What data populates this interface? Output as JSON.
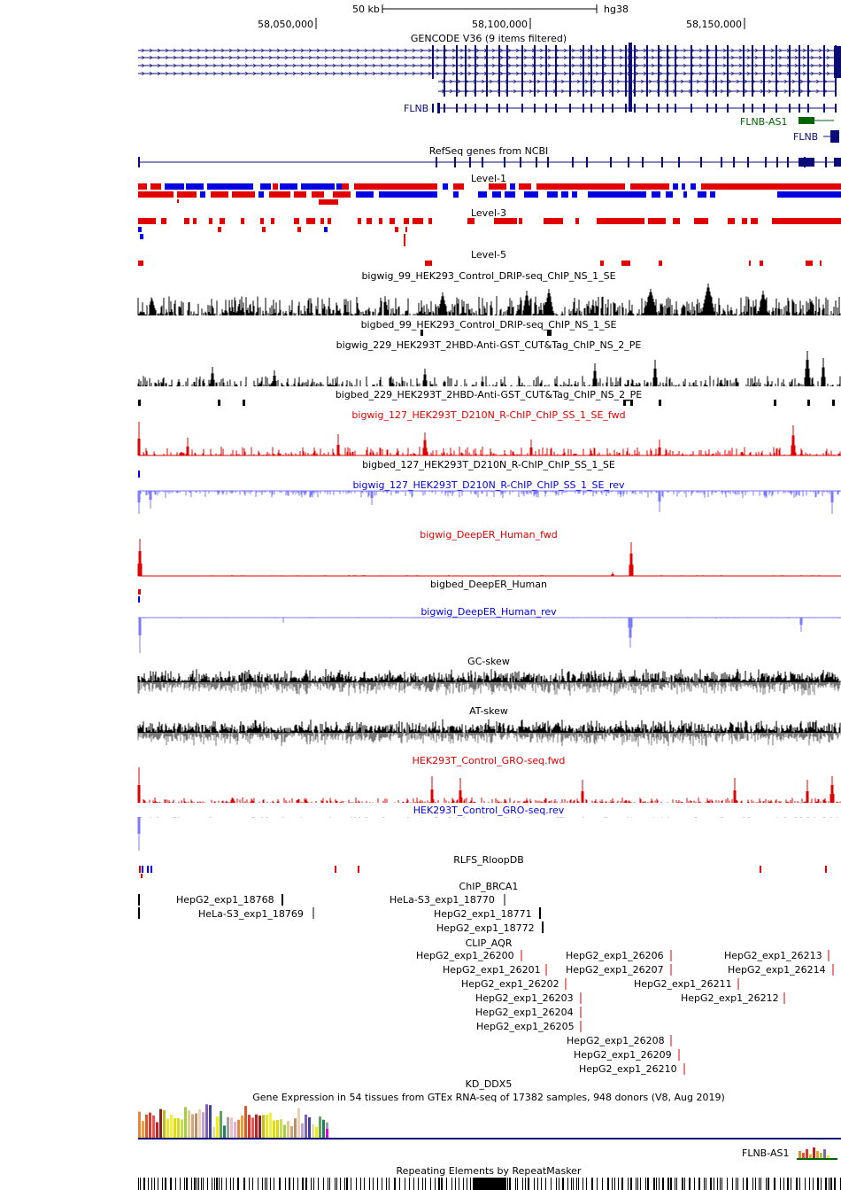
{
  "ruler": {
    "scale_label": "50 kb",
    "assembly": "hg38",
    "ticks": [
      "58,050,000",
      "58,100,000",
      "58,150,000"
    ]
  },
  "colors": {
    "navy": "#0c0c78",
    "green": "#006400",
    "red": "#e00000",
    "blue": "#0000e0",
    "light_blue": "#7a7aff",
    "black": "#000000",
    "gray": "#777777",
    "magenta": "#e000e0"
  },
  "tracks": {
    "gencode": {
      "title": "GENCODE V36 (9 items filtered)",
      "gene_flnb": "FLNB",
      "gene_flnb_as1": "FLNB-AS1",
      "gene_flnb_2": "FLNB"
    },
    "refseq": {
      "title": "RefSeq genes from NCBI"
    },
    "level1": {
      "title": "Level-1"
    },
    "level3": {
      "title": "Level-3"
    },
    "level5": {
      "title": "Level-5"
    },
    "bw99": {
      "title": "bigwig_99_HEK293_Control_DRIP-seq_ChIP_NS_1_SE"
    },
    "bb99": {
      "title": "bigbed_99_HEK293_Control_DRIP-seq_ChIP_NS_1_SE"
    },
    "bw229": {
      "title": "bigwig_229_HEK293T_2HBD-Anti-GST_CUT&Tag_ChIP_NS_2_PE"
    },
    "bb229": {
      "title": "bigbed_229_HEK293T_2HBD-Anti-GST_CUT&Tag_ChIP_NS_2_PE"
    },
    "bw127f": {
      "title": "bigwig_127_HEK293T_D210N_R-ChIP_ChIP_SS_1_SE_fwd"
    },
    "bb127": {
      "title": "bigbed_127_HEK293T_D210N_R-ChIP_ChIP_SS_1_SE"
    },
    "bw127r": {
      "title": "bigwig_127_HEK293T_D210N_R-ChIP_ChIP_SS_1_SE_rev"
    },
    "deeper_f": {
      "title": "bigwig_DeepER_Human_fwd"
    },
    "deeper_bb": {
      "title": "bigbed_DeepER_Human"
    },
    "deeper_r": {
      "title": "bigwig_DeepER_Human_rev"
    },
    "gcskew": {
      "title": "GC-skew"
    },
    "atskew": {
      "title": "AT-skew"
    },
    "gro_f": {
      "title": "HEK293T_Control_GRO-seq.fwd"
    },
    "gro_r": {
      "title": "HEK293T_Control_GRO-seq.rev"
    },
    "rlfs": {
      "title": "RLFS_RloopDB"
    },
    "brca1": {
      "title": "ChIP_BRCA1",
      "items": [
        "HepG2_exp1_18768",
        "HeLa-S3_exp1_18769",
        "HeLa-S3_exp1_18770",
        "HepG2_exp1_18771",
        "HepG2_exp1_18772"
      ]
    },
    "aqr": {
      "title": "CLIP_AQR",
      "items": [
        "HepG2_exp1_26200",
        "HepG2_exp1_26201",
        "HepG2_exp1_26202",
        "HepG2_exp1_26203",
        "HepG2_exp1_26204",
        "HepG2_exp1_26205",
        "HepG2_exp1_26206",
        "HepG2_exp1_26207",
        "HepG2_exp1_26208",
        "HepG2_exp1_26209",
        "HepG2_exp1_26210",
        "HepG2_exp1_26211",
        "HepG2_exp1_26212",
        "HepG2_exp1_26213",
        "HepG2_exp1_26214"
      ]
    },
    "ddx5": {
      "title": "KD_DDX5"
    },
    "gtex": {
      "title": "Gene Expression in 54 tissues from GTEx RNA-seq of 17382 samples, 948 donors (V8, Aug 2019)",
      "gene": "FLNB-AS1"
    },
    "rmsk": {
      "title": "Repeating Elements by RepeatMasker"
    }
  }
}
